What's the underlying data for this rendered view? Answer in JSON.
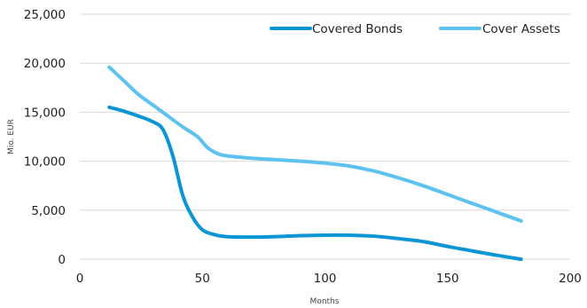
{
  "chart_data": {
    "type": "line",
    "title": "",
    "xlabel": "Months",
    "ylabel": "Mio. EUR",
    "xlim": [
      0,
      200
    ],
    "ylim": [
      0,
      25000
    ],
    "x_ticks": [
      "0",
      "50",
      "100",
      "150",
      "200"
    ],
    "y_ticks": [
      "0",
      "5,000",
      "10,000",
      "15,000",
      "20,000",
      "25,000"
    ],
    "grid": "horizontal",
    "legend_position": "top-right",
    "series": [
      {
        "name": "Covered Bonds",
        "color": "#0a95d4",
        "x": [
          12,
          18,
          24,
          30,
          34,
          38,
          42,
          46,
          50,
          55,
          60,
          70,
          80,
          90,
          100,
          110,
          120,
          130,
          140,
          150,
          160,
          170,
          180
        ],
        "y": [
          15500,
          15100,
          14600,
          14000,
          13200,
          10500,
          6500,
          4300,
          3000,
          2500,
          2300,
          2250,
          2300,
          2400,
          2450,
          2450,
          2350,
          2100,
          1800,
          1300,
          850,
          400,
          0
        ]
      },
      {
        "name": "Cover Assets",
        "color": "#5dc2ef",
        "x": [
          12,
          18,
          24,
          30,
          36,
          42,
          48,
          52,
          56,
          60,
          70,
          80,
          90,
          100,
          110,
          120,
          130,
          140,
          150,
          160,
          170,
          180
        ],
        "y": [
          19600,
          18200,
          16800,
          15700,
          14600,
          13500,
          12500,
          11400,
          10800,
          10550,
          10300,
          10150,
          10000,
          9800,
          9500,
          9000,
          8300,
          7500,
          6600,
          5700,
          4800,
          3900
        ]
      }
    ]
  }
}
